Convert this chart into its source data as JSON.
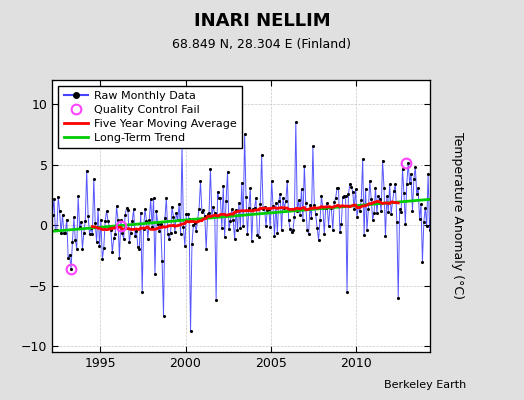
{
  "title": "INARI NELLIM",
  "subtitle": "68.849 N, 28.304 E (Finland)",
  "ylabel": "Temperature Anomaly (°C)",
  "ylim": [
    -10.5,
    12
  ],
  "yticks": [
    -10,
    -5,
    0,
    5,
    10
  ],
  "xlim": [
    1992.2,
    2014.3
  ],
  "xticks": [
    1995,
    2000,
    2005,
    2010
  ],
  "bg_color": "#e0e0e0",
  "plot_bg_color": "#ffffff",
  "grid_color": "#c8c8c8",
  "line_color_monthly": "#4444ff",
  "line_color_moving_avg": "#ff0000",
  "line_color_trend": "#00cc00",
  "dot_color": "#000000",
  "qc_fail_color": "#ff44ff",
  "start_year": 1992,
  "end_year": 2014,
  "berkeley_earth_label": "Berkeley Earth",
  "legend_entries": [
    "Raw Monthly Data",
    "Quality Control Fail",
    "Five Year Moving Average",
    "Long-Term Trend"
  ],
  "qc_fail_points": [
    [
      1993.3,
      -3.6
    ],
    [
      1996.2,
      -0.05
    ],
    [
      2012.9,
      5.1
    ]
  ],
  "seed": 42
}
